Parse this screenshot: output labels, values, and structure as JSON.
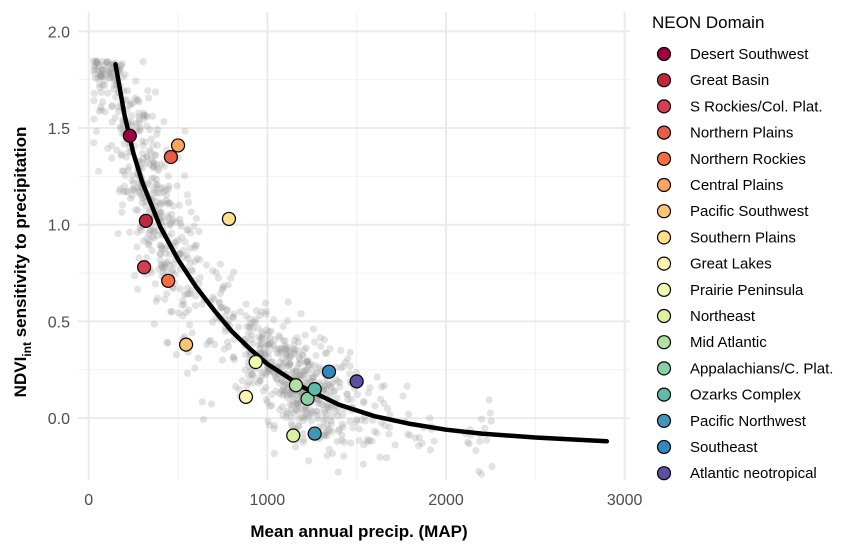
{
  "chart_data": {
    "type": "scatter",
    "title": "",
    "xlabel": "Mean annual precip. (MAP)",
    "ylabel": {
      "prefix": "NDVI",
      "subscript": "int",
      "suffix": " sensitivity to precipitation"
    },
    "xlim": [
      -60,
      3030
    ],
    "ylim": [
      -0.32,
      2.1
    ],
    "x_ticks": [
      0,
      1000,
      2000,
      3000
    ],
    "y_ticks": [
      0.0,
      0.5,
      1.0,
      1.5,
      2.0
    ],
    "y_tick_labels": [
      "0.0",
      "0.5",
      "1.0",
      "1.5",
      "2.0"
    ],
    "grid": true,
    "legend": {
      "title": "NEON Domain",
      "position": "right"
    },
    "background_points_color": "#999999",
    "fit_curve": {
      "color": "#000000",
      "x": [
        150,
        200,
        250,
        300,
        400,
        500,
        600,
        700,
        800,
        900,
        1000,
        1200,
        1400,
        1600,
        1800,
        2000,
        2200,
        2500,
        2900
      ],
      "y": [
        1.83,
        1.57,
        1.37,
        1.22,
        0.99,
        0.82,
        0.68,
        0.56,
        0.45,
        0.36,
        0.28,
        0.16,
        0.07,
        0.01,
        -0.03,
        -0.06,
        -0.08,
        -0.1,
        -0.12
      ]
    },
    "series": [
      {
        "name": "Desert Southwest",
        "color": "#9e0142",
        "x": 230,
        "y": 1.46
      },
      {
        "name": "Great Basin",
        "color": "#c0283f",
        "x": 320,
        "y": 1.02
      },
      {
        "name": "S Rockies/Col. Plat.",
        "color": "#d53e4f",
        "x": 310,
        "y": 0.78
      },
      {
        "name": "Northern Plains",
        "color": "#e95c47",
        "x": 460,
        "y": 1.35
      },
      {
        "name": "Northern Rockies",
        "color": "#f46d43",
        "x": 445,
        "y": 0.71
      },
      {
        "name": "Central Plains",
        "color": "#fca55d",
        "x": 500,
        "y": 1.41
      },
      {
        "name": "Pacific Southwest",
        "color": "#fdc474",
        "x": 545,
        "y": 0.38
      },
      {
        "name": "Southern Plains",
        "color": "#fee08b",
        "x": 785,
        "y": 1.03
      },
      {
        "name": "Great Lakes",
        "color": "#fff5b3",
        "x": 880,
        "y": 0.11
      },
      {
        "name": "Prairie Peninsula",
        "color": "#f2faae",
        "x": 935,
        "y": 0.29
      },
      {
        "name": "Northeast",
        "color": "#dcf1a0",
        "x": 1145,
        "y": -0.09
      },
      {
        "name": "Mid Atlantic",
        "color": "#b3e0a2",
        "x": 1160,
        "y": 0.17
      },
      {
        "name": "Appalachians/C. Plat.",
        "color": "#88cfa4",
        "x": 1225,
        "y": 0.1
      },
      {
        "name": "Ozarks Complex",
        "color": "#5fbaa8",
        "x": 1265,
        "y": 0.15
      },
      {
        "name": "Pacific Northwest",
        "color": "#3f96b7",
        "x": 1265,
        "y": -0.08
      },
      {
        "name": "Southeast",
        "color": "#3288bd",
        "x": 1345,
        "y": 0.24
      },
      {
        "name": "Atlantic neotropical",
        "color": "#5e4fa2",
        "x": 1500,
        "y": 0.19
      }
    ]
  }
}
